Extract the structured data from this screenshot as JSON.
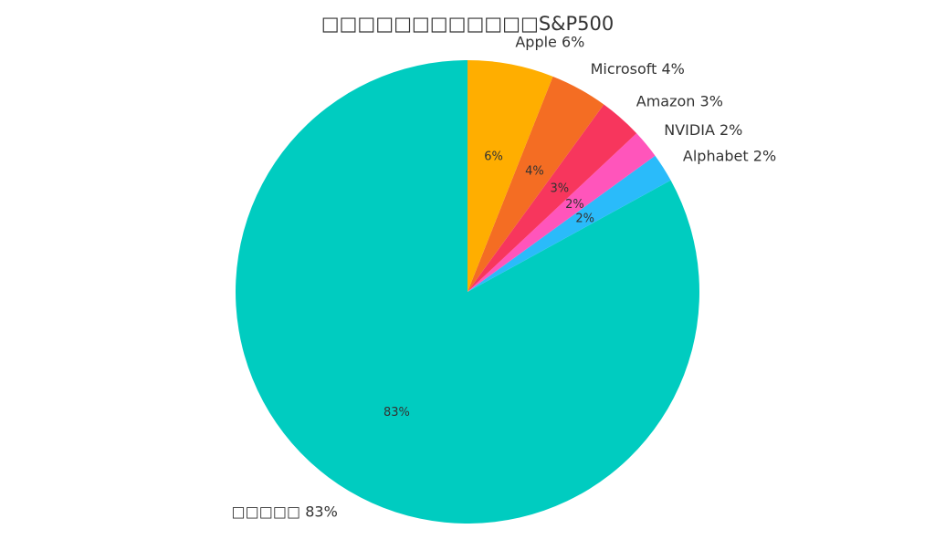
{
  "chart_data": {
    "type": "pie",
    "title": "□□□□□□□□□□□□S&P500",
    "start_angle_deg": 90,
    "direction": "counterclockwise",
    "slices": [
      {
        "label": "□□□□□",
        "value": 83,
        "outer_label": "□□□□□ 83%",
        "inner_label": "83%",
        "color": "#00CCC0"
      },
      {
        "label": "Alphabet",
        "value": 2,
        "outer_label": "Alphabet 2%",
        "inner_label": "2%",
        "color": "#2ABBFA"
      },
      {
        "label": "NVIDIA",
        "value": 2,
        "outer_label": "NVIDIA 2%",
        "inner_label": "2%",
        "color": "#FF55BB"
      },
      {
        "label": "Amazon",
        "value": 3,
        "outer_label": "Amazon 3%",
        "inner_label": "3%",
        "color": "#F7365D"
      },
      {
        "label": "Microsoft",
        "value": 4,
        "outer_label": "Microsoft 4%",
        "inner_label": "4%",
        "color": "#F46D23"
      },
      {
        "label": "Apple",
        "value": 6,
        "outer_label": "Apple 6%",
        "inner_label": "6%",
        "color": "#FFAE00"
      }
    ]
  }
}
